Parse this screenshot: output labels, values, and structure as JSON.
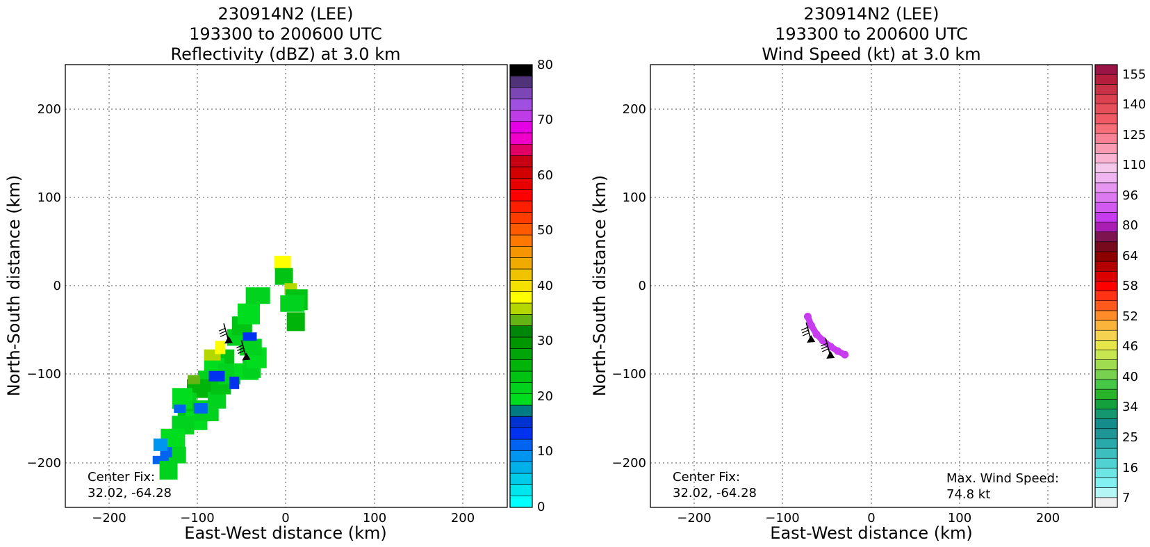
{
  "chart_data": [
    {
      "type": "heatmap",
      "title": [
        "230914N2 (LEE)",
        "193300 to 200600 UTC",
        "Reflectivity (dBZ) at 3.0 km"
      ],
      "xlabel": "East-West distance (km)",
      "ylabel": "North-South distance (km)",
      "xlim": [
        -250,
        250
      ],
      "ylim": [
        -250,
        250
      ],
      "xticks": [
        -200,
        -100,
        0,
        100,
        200
      ],
      "yticks": [
        -200,
        -100,
        0,
        100,
        200
      ],
      "tick_labels": [
        "−200",
        "−100",
        "0",
        "100",
        "200"
      ],
      "grid": "dotted",
      "annotations": {
        "center_fix_label": "Center Fix:",
        "center_fix_value": "32.02, -64.28"
      },
      "colorbar": {
        "min": 0,
        "max": 80,
        "tick_values": [
          0,
          10,
          20,
          30,
          40,
          50,
          60,
          70,
          80
        ],
        "tick_labels": [
          "0",
          "10",
          "20",
          "30",
          "40",
          "50",
          "60",
          "70",
          "80"
        ],
        "colors": [
          "#00ffff",
          "#00e6ef",
          "#00cbe8",
          "#00b0e8",
          "#0096f0",
          "#0064f0",
          "#0032f0",
          "#0032d2",
          "#007b82",
          "#00dc1e",
          "#00d21e",
          "#00c314",
          "#00b40a",
          "#00a50a",
          "#009600",
          "#00870a",
          "#64b414",
          "#b4d700",
          "#ffff00",
          "#f5e100",
          "#f0c300",
          "#f0aa00",
          "#f59600",
          "#ff7800",
          "#ff5a00",
          "#ff3c00",
          "#ff1e00",
          "#ff0000",
          "#e60000",
          "#d20000",
          "#c80014",
          "#e10064",
          "#f000c8",
          "#e600e6",
          "#be3ce6",
          "#a050e1",
          "#7c46b4",
          "#503278",
          "#000000"
        ]
      },
      "echo_cells": [
        {
          "x": -59,
          "y": -57,
          "value": 21
        },
        {
          "x": -52,
          "y": -45,
          "value": 23
        },
        {
          "x": -44,
          "y": -28,
          "value": 20
        },
        {
          "x": -38,
          "y": -12,
          "value": 22
        },
        {
          "x": -70,
          "y": -80,
          "value": 24
        },
        {
          "x": -82,
          "y": -92,
          "value": 20
        },
        {
          "x": -92,
          "y": -104,
          "value": 22
        },
        {
          "x": -103,
          "y": -116,
          "value": 25
        },
        {
          "x": -111,
          "y": -129,
          "value": 21
        },
        {
          "x": -115,
          "y": -142,
          "value": 23
        },
        {
          "x": -105,
          "y": -150,
          "value": 20
        },
        {
          "x": -93,
          "y": -140,
          "value": 22
        },
        {
          "x": -81,
          "y": -128,
          "value": 21
        },
        {
          "x": -76,
          "y": -112,
          "value": 23
        },
        {
          "x": -66,
          "y": -96,
          "value": 22
        },
        {
          "x": -51,
          "y": -98,
          "value": 20
        },
        {
          "x": -40,
          "y": -91,
          "value": 21
        },
        {
          "x": -34,
          "y": -80,
          "value": 20
        },
        {
          "x": -45,
          "y": -68,
          "value": 22
        },
        {
          "x": -88,
          "y": -78,
          "value": 36
        },
        {
          "x": -74,
          "y": -66,
          "value": 38
        },
        {
          "x": -108,
          "y": -107,
          "value": 34
        },
        {
          "x": -120,
          "y": -155,
          "value": 22
        },
        {
          "x": -131,
          "y": -172,
          "value": 20
        },
        {
          "x": -126,
          "y": -190,
          "value": 21
        },
        {
          "x": -138,
          "y": -188,
          "value": 12
        },
        {
          "x": -144,
          "y": -176,
          "value": 9
        },
        {
          "x": -148,
          "y": -198,
          "value": 11
        },
        {
          "x": -134,
          "y": -206,
          "value": 22
        },
        {
          "x": -118,
          "y": -126,
          "value": 20
        },
        {
          "x": -46,
          "y": -56,
          "value": 14
        },
        {
          "x": -83,
          "y": -102,
          "value": 13
        },
        {
          "x": -58,
          "y": -106,
          "value": 14
        },
        {
          "x": -124,
          "y": -140,
          "value": 12
        },
        {
          "x": -100,
          "y": -136,
          "value": 12
        },
        {
          "x": -7,
          "y": 28,
          "value": 38
        },
        {
          "x": -5,
          "y": 12,
          "value": 24
        },
        {
          "x": 3,
          "y": -3,
          "value": 36
        },
        {
          "x": 10,
          "y": -12,
          "value": 24
        },
        {
          "x": 1,
          "y": -21,
          "value": 22
        },
        {
          "x": 10,
          "y": -38,
          "value": 26
        }
      ],
      "wind_barbs": [
        {
          "x": -66,
          "y": -60
        },
        {
          "x": -46,
          "y": -79
        }
      ]
    },
    {
      "type": "heatmap",
      "title": [
        "230914N2 (LEE)",
        "193300 to 200600 UTC",
        "Wind Speed (kt) at 3.0 km"
      ],
      "xlabel": "East-West distance (km)",
      "ylabel": "North-South distance (km)",
      "xlim": [
        -250,
        250
      ],
      "ylim": [
        -250,
        250
      ],
      "xticks": [
        -200,
        -100,
        0,
        100,
        200
      ],
      "yticks": [
        -200,
        -100,
        0,
        100,
        200
      ],
      "tick_labels": [
        "−200",
        "−100",
        "0",
        "100",
        "200"
      ],
      "grid": "dotted",
      "annotations": {
        "center_fix_label": "Center Fix:",
        "center_fix_value": "32.02, -64.28",
        "max_wind_label": "Max. Wind Speed:",
        "max_wind_value": "74.8 kt"
      },
      "colorbar": {
        "tick_labels": [
          "7",
          "16",
          "25",
          "34",
          "40",
          "46",
          "52",
          "58",
          "64",
          "80",
          "96",
          "110",
          "125",
          "140",
          "155"
        ],
        "colors": [
          "#f0f0f0",
          "#b4f5f5",
          "#82f0f0",
          "#6ee6e6",
          "#50d2d2",
          "#3cbebe",
          "#28aaaa",
          "#1e9696",
          "#148c8c",
          "#14966e",
          "#14a03c",
          "#28b428",
          "#46c846",
          "#78d250",
          "#a0dc50",
          "#c8e650",
          "#e6e64b",
          "#f5d250",
          "#fab43c",
          "#ff8c28",
          "#ff5a1e",
          "#ff3214",
          "#ff0000",
          "#dc0000",
          "#b40000",
          "#8c0000",
          "#780a1e",
          "#7d1450",
          "#aa1eb4",
          "#c83cf0",
          "#d25af0",
          "#dc78f0",
          "#e696f0",
          "#f0b4f0",
          "#f5c8eb",
          "#fab4d2",
          "#fa9bb4",
          "#fa8296",
          "#f56e78",
          "#f05a64",
          "#e6505a",
          "#dc4150",
          "#c83246",
          "#b41e3c",
          "#9a1446"
        ]
      },
      "wind_arc": [
        {
          "x": -72,
          "y": -35,
          "value": 72
        },
        {
          "x": -68,
          "y": -45,
          "value": 73
        },
        {
          "x": -62,
          "y": -55,
          "value": 74.8
        },
        {
          "x": -55,
          "y": -62,
          "value": 74
        },
        {
          "x": -46,
          "y": -69,
          "value": 73
        },
        {
          "x": -38,
          "y": -74,
          "value": 72
        },
        {
          "x": -30,
          "y": -78,
          "value": 71
        }
      ],
      "wind_barbs": [
        {
          "x": -69,
          "y": -59
        },
        {
          "x": -47,
          "y": -77
        }
      ]
    }
  ]
}
